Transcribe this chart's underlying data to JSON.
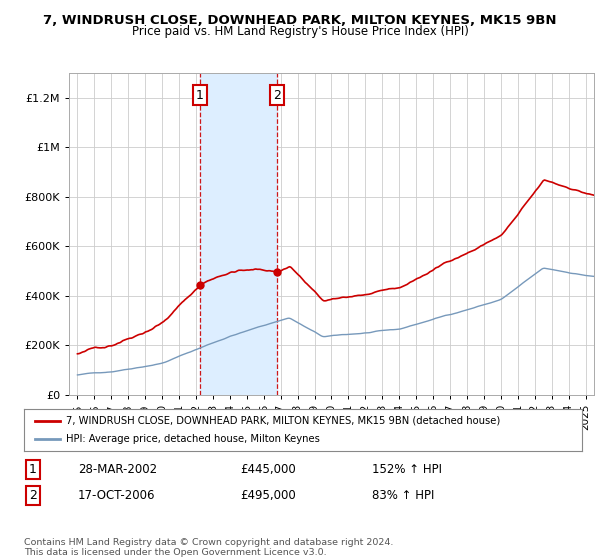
{
  "title_line1": "7, WINDRUSH CLOSE, DOWNHEAD PARK, MILTON KEYNES, MK15 9BN",
  "title_line2": "Price paid vs. HM Land Registry's House Price Index (HPI)",
  "background_color": "#ffffff",
  "plot_bg_color": "#ffffff",
  "grid_color": "#cccccc",
  "red_line_color": "#cc0000",
  "blue_line_color": "#7799bb",
  "sale1_date_num": 2002.24,
  "sale2_date_num": 2006.8,
  "sale1_price": 445000,
  "sale2_price": 495000,
  "shade_color": "#ddeeff",
  "ylim_min": 0,
  "ylim_max": 1300000,
  "yticks": [
    0,
    200000,
    400000,
    600000,
    800000,
    1000000,
    1200000
  ],
  "ytick_labels": [
    "£0",
    "£200K",
    "£400K",
    "£600K",
    "£800K",
    "£1M",
    "£1.2M"
  ],
  "legend_label1": "7, WINDRUSH CLOSE, DOWNHEAD PARK, MILTON KEYNES, MK15 9BN (detached house)",
  "legend_label2": "HPI: Average price, detached house, Milton Keynes",
  "table_row1": [
    "1",
    "28-MAR-2002",
    "£445,000",
    "152% ↑ HPI"
  ],
  "table_row2": [
    "2",
    "17-OCT-2006",
    "£495,000",
    "83% ↑ HPI"
  ],
  "footnote": "Contains HM Land Registry data © Crown copyright and database right 2024.\nThis data is licensed under the Open Government Licence v3.0.",
  "xlim_min": 1994.5,
  "xlim_max": 2025.5
}
